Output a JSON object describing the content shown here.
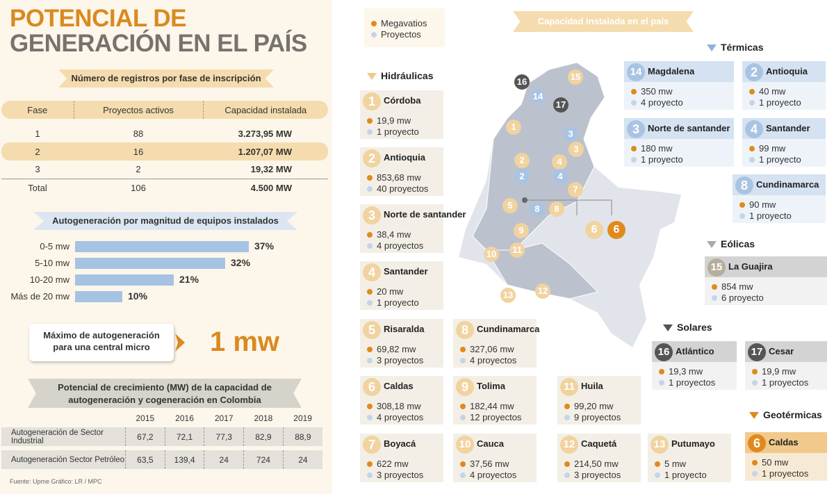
{
  "title_line1": "POTENCIAL DE",
  "title_line2": "GENERACIÓN EN EL PAÍS",
  "registros": {
    "banner": "Número de registros por fase de inscripción",
    "headers": [
      "Fase",
      "Proyectos activos",
      "Capacidad instalada"
    ],
    "rows": [
      [
        "1",
        "88",
        "3.273,95 MW"
      ],
      [
        "2",
        "16",
        "1.207,07 MW"
      ],
      [
        "3",
        "2",
        "19,32 MW"
      ],
      [
        "Total",
        "106",
        "4.500 MW"
      ]
    ]
  },
  "autogen": {
    "banner": "Autogeneración por magnitud de equipos instalados",
    "bars": [
      {
        "label": "0-5 mw",
        "value": 37,
        "text": "37%"
      },
      {
        "label": "5-10 mw",
        "value": 32,
        "text": "32%"
      },
      {
        "label": "10-20 mw",
        "value": 21,
        "text": "21%"
      },
      {
        "label": "Más de 20 mw",
        "value": 10,
        "text": "10%"
      }
    ]
  },
  "maximo": {
    "line1": "Máximo de autogeneración",
    "line2": "para una central micro",
    "value": "1 mw"
  },
  "crecimiento": {
    "banner_line1": "Potencial de crecimiento (MW) de la capacidad de",
    "banner_line2": "autogeneración y cogeneración en Colombia",
    "years": [
      "2015",
      "2016",
      "2017",
      "2018",
      "2019"
    ],
    "rows": [
      {
        "label": "Autogeneración de Sector Industrial",
        "values": [
          "67,2",
          "72,1",
          "77,3",
          "82,9",
          "88,9"
        ]
      },
      {
        "label": "Autogeneración Sector Petróleo",
        "values": [
          "63,5",
          "139,4",
          "24",
          "724",
          "24"
        ]
      }
    ]
  },
  "fuente": "Fuente: Upme   Gráfico: LR / MPC",
  "legend": {
    "mw": "Megavatios",
    "proj": "Proyectos"
  },
  "capacidad_banner": "Capacidad instalada en el país",
  "sections": {
    "hidraulicas": "Hidráulicas",
    "termicas": "Térmicas",
    "eolicas": "Eólicas",
    "solares": "Solares",
    "geotermicas": "Geotérmicas"
  },
  "hidraulicas": [
    {
      "n": "1",
      "name": "Córdoba",
      "mw": "19,9 mw",
      "proj": "1 proyecto"
    },
    {
      "n": "2",
      "name": "Antioquia",
      "mw": "853,68 mw",
      "proj": "40 proyectos"
    },
    {
      "n": "3",
      "name": "Norte de santander",
      "mw": "38,4 mw",
      "proj": "4 proyectos"
    },
    {
      "n": "4",
      "name": "Santander",
      "mw": "20 mw",
      "proj": "1 proyecto"
    },
    {
      "n": "5",
      "name": "Risaralda",
      "mw": "69,82 mw",
      "proj": "3 proyectos"
    },
    {
      "n": "6",
      "name": "Caldas",
      "mw": "308,18 mw",
      "proj": "4 proyectos"
    },
    {
      "n": "7",
      "name": "Boyacá",
      "mw": "622 mw",
      "proj": "3 proyectos"
    },
    {
      "n": "8",
      "name": "Cundinamarca",
      "mw": "327,06 mw",
      "proj": "4 proyectos"
    },
    {
      "n": "9",
      "name": "Tolima",
      "mw": "182,44 mw",
      "proj": "12 proyectos"
    },
    {
      "n": "10",
      "name": "Cauca",
      "mw": "37,56 mw",
      "proj": "4 proyectos"
    },
    {
      "n": "11",
      "name": "Huila",
      "mw": "99,20 mw",
      "proj": "9 proyectos"
    },
    {
      "n": "12",
      "name": "Caquetá",
      "mw": "214,50 mw",
      "proj": "3 proyectos"
    },
    {
      "n": "13",
      "name": "Putumayo",
      "mw": "5 mw",
      "proj": "1 proyecto"
    }
  ],
  "termicas": [
    {
      "n": "14",
      "name": "Magdalena",
      "mw": "350 mw",
      "proj": "4 proyecto"
    },
    {
      "n": "2",
      "name": "Antioquia",
      "mw": "40 mw",
      "proj": "1 proyecto"
    },
    {
      "n": "3",
      "name": "Norte de santander",
      "mw": "180 mw",
      "proj": "1 proyecto"
    },
    {
      "n": "4",
      "name": "Santander",
      "mw": "99 mw",
      "proj": "1 proyecto"
    },
    {
      "n": "8",
      "name": "Cundinamarca",
      "mw": "90 mw",
      "proj": "1 proyecto"
    }
  ],
  "eolicas": [
    {
      "n": "15",
      "name": "La Guajira",
      "mw": "854 mw",
      "proj": "6 proyecto"
    }
  ],
  "solares": [
    {
      "n": "16",
      "name": "Atlántico",
      "mw": "19,3 mw",
      "proj": "1 proyectos"
    },
    {
      "n": "17",
      "name": "Cesar",
      "mw": "19,9 mw",
      "proj": "1 proyectos"
    }
  ],
  "geotermicas": [
    {
      "n": "6",
      "name": "Caldas",
      "mw": "50 mw",
      "proj": "1 proyectos"
    }
  ],
  "map_labels": [
    "1",
    "2",
    "2",
    "3",
    "3",
    "4",
    "4",
    "5",
    "6",
    "6",
    "7",
    "8",
    "8",
    "9",
    "10",
    "11",
    "12",
    "13",
    "14",
    "15",
    "16",
    "17"
  ],
  "colors": {
    "hidro": "#f1d3a0",
    "termica": "#a9c4e2",
    "solar": "#555555",
    "geo": "#e08a1e",
    "accent": "#d98a20"
  }
}
